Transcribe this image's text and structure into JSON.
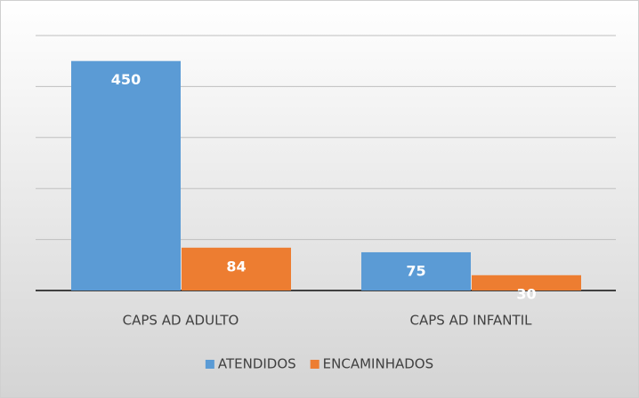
{
  "chart_data": {
    "type": "bar",
    "categories": [
      "CAPS AD ADULTO",
      "CAPS AD INFANTIL"
    ],
    "series": [
      {
        "name": "ATENDIDOS",
        "color": "#5b9bd5",
        "values": [
          450,
          75
        ]
      },
      {
        "name": "ENCAMINHADOS",
        "color": "#ed7d31",
        "values": [
          84,
          30
        ]
      }
    ],
    "ylim": [
      0,
      500
    ],
    "yticks": [
      0,
      100,
      200,
      300,
      400,
      500
    ],
    "grid": true
  }
}
